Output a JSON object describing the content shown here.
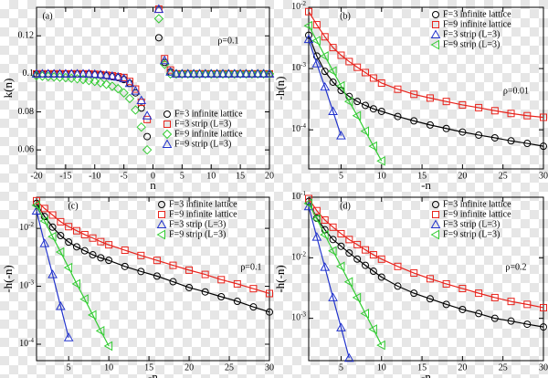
{
  "chart_data": [
    {
      "type": "scatter",
      "panel_label": "(a)",
      "annotation": "ρ=0.1",
      "xlabel": "n",
      "ylabel": "k(n)",
      "xlim": [
        -20,
        20
      ],
      "xticks": [
        -20,
        -15,
        -10,
        -5,
        0,
        5,
        10,
        15,
        20
      ],
      "ylim": [
        0.05,
        0.135
      ],
      "yticks": [
        0.06,
        0.08,
        0.1,
        0.12
      ],
      "log_y": false,
      "lines": false,
      "legend": "lower right",
      "x": [
        -20,
        -19,
        -18,
        -17,
        -16,
        -15,
        -14,
        -13,
        -12,
        -11,
        -10,
        -9,
        -8,
        -7,
        -6,
        -5,
        -4,
        -3,
        -2,
        -1,
        0,
        1,
        2,
        3,
        4,
        5,
        6,
        7,
        8,
        9,
        10,
        11,
        12,
        13,
        14,
        15,
        16,
        17,
        18,
        19,
        20
      ],
      "series": [
        {
          "name": "F=3 infinite lattice",
          "color": "#000000",
          "marker": "circle",
          "values": [
            0.1,
            0.1,
            0.1,
            0.1,
            0.1,
            0.1,
            0.1,
            0.1,
            0.1,
            0.0998,
            0.0996,
            0.0994,
            0.099,
            0.0985,
            0.098,
            0.097,
            0.095,
            0.09,
            0.082,
            0.067,
            null,
            0.119,
            0.106,
            0.101,
            0.1,
            0.1,
            0.1,
            0.1,
            0.1,
            0.1,
            0.1,
            0.1,
            0.1,
            0.1,
            0.1,
            0.1,
            0.1,
            0.1,
            0.1,
            0.1,
            0.1
          ]
        },
        {
          "name": "F=3 strip (L=3)",
          "color": "#e8231c",
          "marker": "square",
          "values": [
            0.1,
            0.1,
            0.1,
            0.1,
            0.1,
            0.1,
            0.1,
            0.1,
            0.1,
            0.1,
            0.0998,
            0.0996,
            0.0993,
            0.099,
            0.0985,
            0.098,
            0.096,
            0.092,
            0.085,
            0.076,
            null,
            0.134,
            0.108,
            0.102,
            0.1,
            0.1,
            0.1,
            0.1,
            0.1,
            0.1,
            0.1,
            0.1,
            0.1,
            0.1,
            0.1,
            0.1,
            0.1,
            0.1,
            0.1,
            0.1,
            0.1
          ]
        },
        {
          "name": "F=9 infinite lattice",
          "color": "#33cc33",
          "marker": "diamond",
          "values": [
            0.099,
            0.0988,
            0.0986,
            0.0984,
            0.0982,
            0.098,
            0.0977,
            0.0974,
            0.097,
            0.0965,
            0.096,
            0.0953,
            0.0945,
            0.0935,
            0.0922,
            0.09,
            0.087,
            0.081,
            0.072,
            0.06,
            null,
            0.129,
            0.105,
            0.1,
            0.1,
            0.1,
            0.1,
            0.1,
            0.1,
            0.1,
            0.1,
            0.1,
            0.1,
            0.1,
            0.1,
            0.1,
            0.1,
            0.1,
            0.1,
            0.1,
            0.1
          ]
        },
        {
          "name": "F=9 strip (L=3)",
          "color": "#2233cc",
          "marker": "triangle",
          "values": [
            0.1,
            0.1,
            0.1,
            0.1,
            0.1,
            0.1,
            0.1,
            0.1,
            0.1,
            0.1,
            0.0998,
            0.0996,
            0.0993,
            0.0988,
            0.0983,
            0.0975,
            0.095,
            0.091,
            0.086,
            0.078,
            null,
            0.134,
            0.107,
            0.101,
            0.1,
            0.1,
            0.1,
            0.1,
            0.1,
            0.1,
            0.1,
            0.1,
            0.1,
            0.1,
            0.1,
            0.1,
            0.1,
            0.1,
            0.1,
            0.1,
            0.1
          ]
        }
      ]
    },
    {
      "type": "scatter",
      "panel_label": "(b)",
      "annotation": "ρ=0.01",
      "xlabel": "-n",
      "ylabel": "-h(n)",
      "xlim": [
        1,
        30
      ],
      "xticks": [
        5,
        10,
        15,
        20,
        25,
        30
      ],
      "ylim": [
        2.3e-05,
        0.01
      ],
      "yticks": [
        {
          "value": 0.01,
          "label": "10-2"
        },
        {
          "value": 0.001,
          "label": "10-3"
        },
        {
          "value": 0.0001,
          "label": "10-4"
        }
      ],
      "log_y": true,
      "lines": true,
      "legend": "upper right",
      "series": [
        {
          "name": "F=3 infinite lattice",
          "color": "#000000",
          "marker": "circle",
          "x": [
            1,
            2,
            3,
            4,
            5,
            6,
            7,
            8,
            9,
            10,
            12,
            14,
            16,
            18,
            20,
            22,
            24,
            26,
            28,
            30
          ],
          "values": [
            0.0035,
            0.0016,
            0.0009,
            0.0006,
            0.00044,
            0.00035,
            0.00029,
            0.00025,
            0.00022,
            0.0002,
            0.000165,
            0.00014,
            0.00012,
            0.000105,
            9.2e-05,
            8.2e-05,
            7.4e-05,
            6.6e-05,
            6e-05,
            5.4e-05
          ]
        },
        {
          "name": "F=9 infinite lattice",
          "color": "#e8231c",
          "marker": "square",
          "x": [
            1,
            2,
            3,
            4,
            5,
            6,
            7,
            8,
            9,
            10,
            12,
            14,
            16,
            18,
            20,
            22,
            24,
            26,
            28,
            30
          ],
          "values": [
            0.0085,
            0.0052,
            0.0033,
            0.0022,
            0.00165,
            0.0013,
            0.00105,
            0.00086,
            0.0007,
            0.00058,
            0.00046,
            0.00038,
            0.00033,
            0.00029,
            0.000255,
            0.00023,
            0.000205,
            0.000185,
            0.00017,
            0.00016
          ]
        },
        {
          "name": "F=3 strip (L=3)",
          "color": "#2233cc",
          "marker": "triangle",
          "x": [
            1,
            2,
            3,
            4,
            5
          ],
          "values": [
            0.003,
            0.0012,
            0.0005,
            0.0002,
            8e-05
          ]
        },
        {
          "name": "F=9 strip (L=3)",
          "color": "#33cc33",
          "marker": "left-triangle",
          "x": [
            1,
            2,
            3,
            4,
            5,
            6,
            7,
            8,
            9,
            10
          ],
          "values": [
            0.005,
            0.00285,
            0.0016,
            0.00091,
            0.00052,
            0.00029,
            0.00017,
            9.5e-05,
            5.4e-05,
            3.1e-05
          ]
        }
      ]
    },
    {
      "type": "scatter",
      "panel_label": "(c)",
      "annotation": "ρ=0.1",
      "xlabel": "-n",
      "ylabel": "-h(-n)",
      "xlim": [
        1,
        30
      ],
      "xticks": [
        5,
        10,
        15,
        20,
        25,
        30
      ],
      "ylim": [
        5.2e-05,
        0.0345
      ],
      "yticks": [
        {
          "value": 0.01,
          "label": "10-2"
        },
        {
          "value": 0.001,
          "label": "10-3"
        },
        {
          "value": 0.0001,
          "label": "10-4"
        }
      ],
      "log_y": true,
      "lines": true,
      "legend": "upper right",
      "series": [
        {
          "name": "F=3 infinite lattice",
          "color": "#000000",
          "marker": "circle",
          "x": [
            1,
            2,
            3,
            4,
            5,
            6,
            7,
            8,
            9,
            10,
            12,
            14,
            16,
            18,
            20,
            22,
            24,
            26,
            28,
            30
          ],
          "values": [
            0.027,
            0.016,
            0.0105,
            0.0075,
            0.0058,
            0.0048,
            0.0041,
            0.0035,
            0.0031,
            0.0028,
            0.0022,
            0.0018,
            0.0015,
            0.0012,
            0.00095,
            0.0008,
            0.00066,
            0.00055,
            0.00044,
            0.00036
          ]
        },
        {
          "name": "F=9 infinite lattice",
          "color": "#e8231c",
          "marker": "square",
          "x": [
            1,
            2,
            3,
            4,
            5,
            6,
            7,
            8,
            9,
            10,
            12,
            14,
            16,
            18,
            20,
            22,
            24,
            26,
            28,
            30
          ],
          "values": [
            0.03,
            0.022,
            0.017,
            0.013,
            0.0107,
            0.0091,
            0.0078,
            0.0068,
            0.0059,
            0.0052,
            0.0042,
            0.0034,
            0.0028,
            0.0023,
            0.0019,
            0.0016,
            0.0013,
            0.0011,
            0.00091,
            0.00075
          ]
        },
        {
          "name": "F=3 strip (L=3)",
          "color": "#2233cc",
          "marker": "triangle",
          "x": [
            1,
            2,
            3,
            4,
            5
          ],
          "values": [
            0.02,
            0.0055,
            0.0016,
            0.00045,
            0.00013
          ]
        },
        {
          "name": "F=9 strip (L=3)",
          "color": "#33cc33",
          "marker": "left-triangle",
          "x": [
            1,
            2,
            3,
            4,
            5,
            6,
            7,
            8,
            9,
            10
          ],
          "values": [
            0.025,
            0.0134,
            0.0072,
            0.0039,
            0.0021,
            0.0011,
            0.0006,
            0.00032,
            0.00017,
            9.3e-05
          ]
        }
      ]
    },
    {
      "type": "scatter",
      "panel_label": "(d)",
      "annotation": "ρ=0.2",
      "xlabel": "-n",
      "ylabel": "-h(-n)",
      "xlim": [
        1,
        30
      ],
      "xticks": [
        5,
        10,
        15,
        20,
        25,
        30
      ],
      "ylim": [
        0.0002,
        0.1
      ],
      "yticks": [
        {
          "value": 0.1,
          "label": "10-1"
        },
        {
          "value": 0.01,
          "label": "10-2"
        },
        {
          "value": 0.001,
          "label": "10-3"
        }
      ],
      "log_y": true,
      "lines": true,
      "legend": "upper right",
      "series": [
        {
          "name": "F=3 infinite lattice",
          "color": "#000000",
          "marker": "circle",
          "x": [
            1,
            2,
            3,
            4,
            5,
            6,
            7,
            8,
            9,
            10,
            12,
            14,
            16,
            18,
            20,
            22,
            24,
            26,
            28,
            30
          ],
          "values": [
            0.085,
            0.045,
            0.029,
            0.02,
            0.0155,
            0.012,
            0.0095,
            0.0075,
            0.006,
            0.0048,
            0.0034,
            0.0026,
            0.0021,
            0.0017,
            0.0014,
            0.0012,
            0.001,
            0.0009,
            0.0008,
            0.00072
          ]
        },
        {
          "name": "F=9 infinite lattice",
          "color": "#e8231c",
          "marker": "square",
          "x": [
            1,
            2,
            3,
            4,
            5,
            6,
            7,
            8,
            9,
            10,
            12,
            14,
            16,
            18,
            20,
            22,
            24,
            26,
            28,
            30
          ],
          "values": [
            0.095,
            0.06,
            0.042,
            0.032,
            0.025,
            0.02,
            0.0165,
            0.0135,
            0.0112,
            0.0095,
            0.0072,
            0.0056,
            0.0045,
            0.0037,
            0.0031,
            0.0026,
            0.0022,
            0.0019,
            0.0017,
            0.0015
          ]
        },
        {
          "name": "F=3 strip (L=3)",
          "color": "#2233cc",
          "marker": "triangle",
          "x": [
            1,
            2,
            3,
            4,
            5,
            6
          ],
          "values": [
            0.07,
            0.022,
            0.007,
            0.0022,
            0.0007,
            0.00022
          ]
        },
        {
          "name": "F=9 strip (L=3)",
          "color": "#33cc33",
          "marker": "left-triangle",
          "x": [
            1,
            2,
            3,
            4,
            5,
            6,
            7,
            8,
            9,
            10
          ],
          "values": [
            0.079,
            0.044,
            0.024,
            0.013,
            0.0072,
            0.004,
            0.0022,
            0.0012,
            0.00066,
            0.00036
          ]
        }
      ]
    }
  ]
}
